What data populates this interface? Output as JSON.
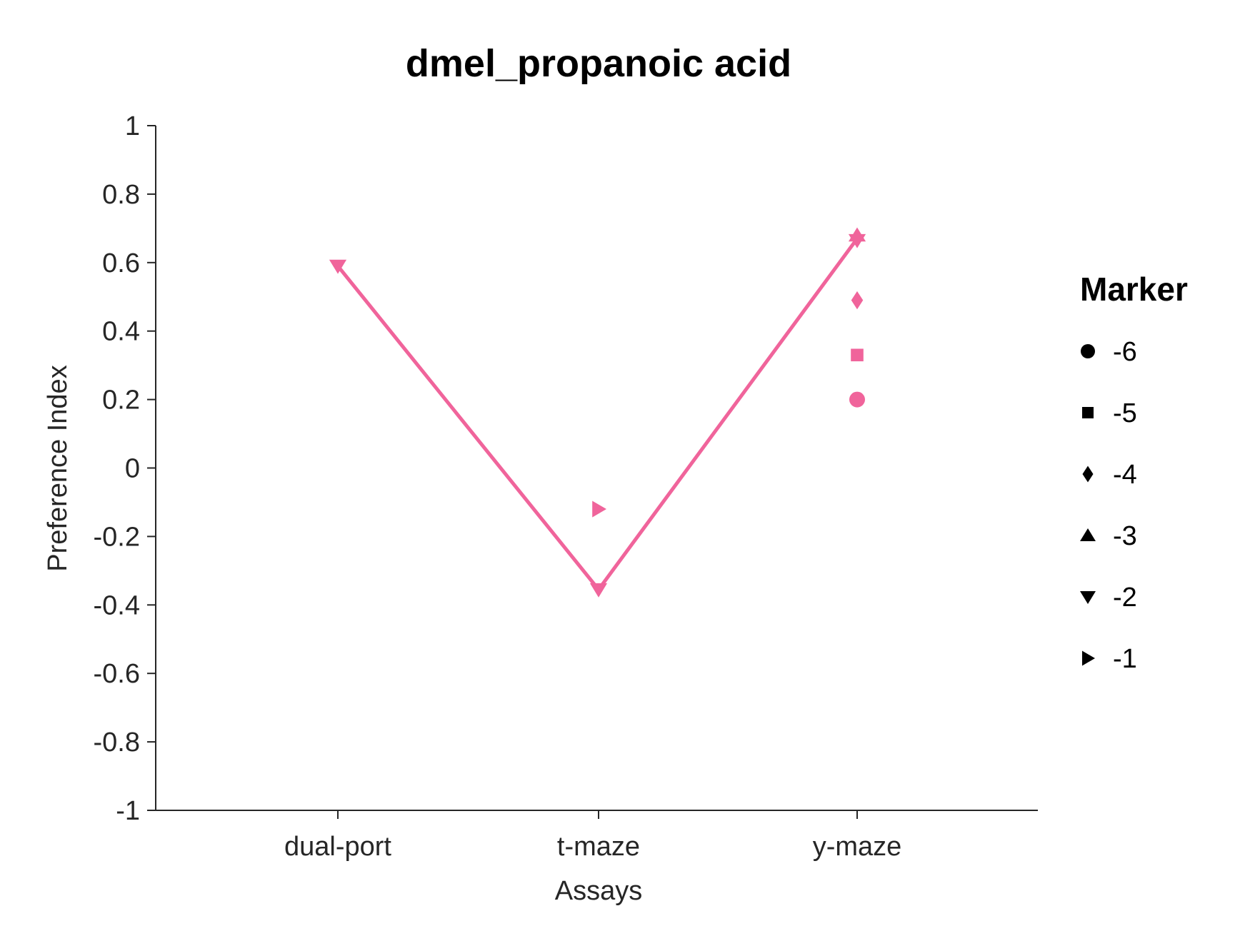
{
  "chart_data": {
    "type": "line",
    "title": "dmel_propanoic acid",
    "xlabel": "Assays",
    "ylabel": "Preference Index",
    "categories": [
      "dual-port",
      "t-maze",
      "y-maze"
    ],
    "ylim": [
      -1,
      1
    ],
    "yticks": [
      "1",
      "0.8",
      "0.6",
      "0.4",
      "0.2",
      "0",
      "-0.2",
      "-0.4",
      "-0.6",
      "-0.8",
      "-1"
    ],
    "ytick_values": [
      1,
      0.8,
      0.6,
      0.4,
      0.2,
      0,
      -0.2,
      -0.4,
      -0.6,
      -0.8,
      -1
    ],
    "color": "#f0649b",
    "grid": false,
    "line": {
      "values": [
        0.59,
        -0.355,
        0.67
      ]
    },
    "points": [
      {
        "category": "dual-port",
        "value": 0.59,
        "marker": "-2"
      },
      {
        "category": "t-maze",
        "value": -0.355,
        "marker": "-2"
      },
      {
        "category": "t-maze",
        "value": -0.12,
        "marker": "-1"
      },
      {
        "category": "y-maze",
        "value": 0.68,
        "marker": "-3"
      },
      {
        "category": "y-maze",
        "value": 0.665,
        "marker": "-2"
      },
      {
        "category": "y-maze",
        "value": 0.49,
        "marker": "-4"
      },
      {
        "category": "y-maze",
        "value": 0.33,
        "marker": "-5"
      },
      {
        "category": "y-maze",
        "value": 0.2,
        "marker": "-6"
      }
    ],
    "legend": {
      "title": "Marker",
      "placement": "right",
      "items": [
        {
          "label": "-6",
          "shape": "circle"
        },
        {
          "label": "-5",
          "shape": "square"
        },
        {
          "label": "-4",
          "shape": "diamond"
        },
        {
          "label": "-3",
          "shape": "triangle-up"
        },
        {
          "label": "-2",
          "shape": "triangle-down"
        },
        {
          "label": "-1",
          "shape": "triangle-right"
        }
      ]
    }
  }
}
